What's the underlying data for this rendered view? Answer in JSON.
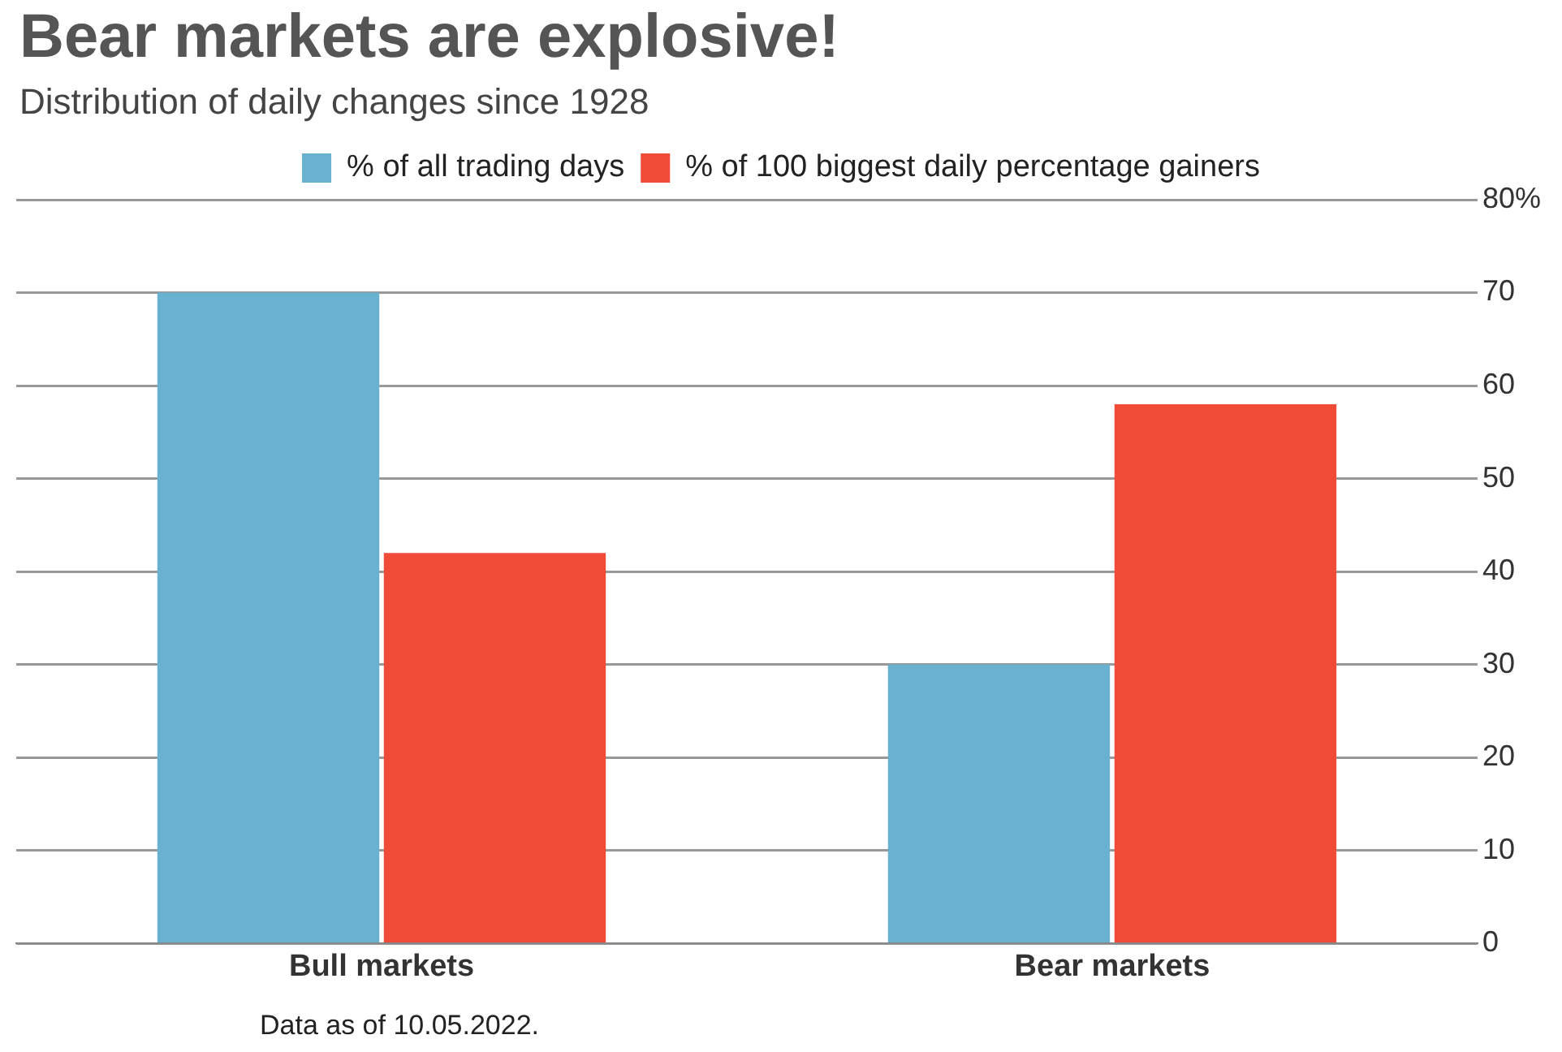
{
  "chart_data": {
    "type": "bar",
    "title": "Bear markets are explosive!",
    "subtitle": "Distribution of daily changes since 1928",
    "categories": [
      "Bull markets",
      "Bear markets"
    ],
    "series": [
      {
        "name": "% of all trading days",
        "color": "#69b1d0",
        "values": [
          70,
          30
        ]
      },
      {
        "name": "% of 100 biggest daily percentage gainers",
        "color": "#f04b36",
        "values": [
          42,
          58
        ]
      }
    ],
    "ylim": [
      0,
      80
    ],
    "yticks": [
      0,
      10,
      20,
      30,
      40,
      50,
      60,
      70,
      {
        "value": 80,
        "label": "80%"
      }
    ],
    "grid": "y",
    "legend": "top",
    "annotations": [
      "Data as of 10.05.2022."
    ]
  }
}
